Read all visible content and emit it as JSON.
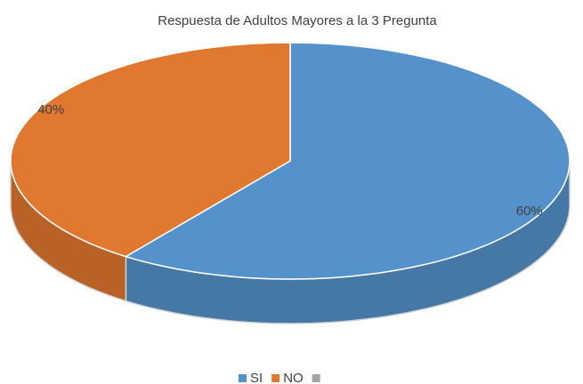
{
  "chart_data": {
    "type": "pie",
    "title": "Respuesta de Adultos Mayores a la 3 Pregunta",
    "categories": [
      "SI",
      "NO",
      null
    ],
    "values": [
      60,
      40,
      0
    ],
    "value_labels": [
      "60%",
      "40%",
      null
    ],
    "colors": [
      "#5592cb",
      "#e07830",
      "#a5a5a5"
    ],
    "legend": "bottom"
  }
}
